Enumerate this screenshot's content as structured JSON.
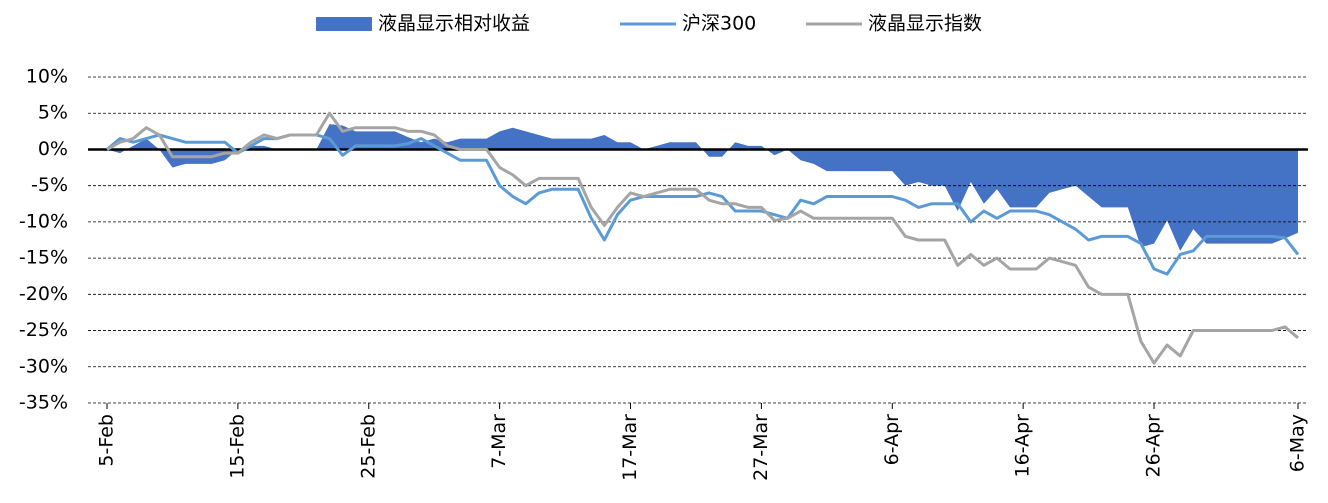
{
  "chart_data": {
    "type": "line",
    "x": [
      0,
      1,
      2,
      3,
      4,
      5,
      6,
      7,
      8,
      9,
      10,
      11,
      12,
      13,
      14,
      15,
      16,
      17,
      18,
      19,
      20,
      21,
      22,
      23,
      24,
      25,
      26,
      27,
      28,
      29,
      30,
      31,
      32,
      33,
      34,
      35,
      36,
      37,
      38,
      39,
      40,
      41,
      42,
      43,
      44,
      45,
      46,
      47,
      48,
      49,
      50,
      51,
      52,
      53,
      54,
      55,
      56,
      57,
      58,
      59,
      60,
      61,
      62,
      63,
      64,
      65,
      66,
      67,
      68,
      69,
      70,
      71,
      72,
      73,
      74,
      75,
      76,
      77,
      78,
      79,
      80,
      81,
      82,
      83,
      84,
      85,
      86,
      87,
      88,
      89,
      90,
      91
    ],
    "series": [
      {
        "name": "液晶显示相对收益",
        "kind": "area",
        "color": "#4472c4",
        "values": [
          0,
          -0.5,
          0.5,
          1.5,
          0,
          -2.5,
          -2,
          -2,
          -2,
          -1.5,
          0,
          0.5,
          0.5,
          0,
          0,
          0,
          0,
          3.5,
          3.3,
          2.5,
          2.5,
          2.5,
          2.5,
          1.7,
          1,
          1.5,
          1,
          1.5,
          1.5,
          1.5,
          2.5,
          3,
          2.5,
          2,
          1.5,
          1.5,
          1.5,
          1.5,
          2,
          1,
          1,
          0,
          0.5,
          1,
          1,
          1,
          -1,
          -1,
          1,
          0.5,
          0.5,
          -0.8,
          0,
          -1.5,
          -2,
          -3,
          -3,
          -3,
          -3,
          -3,
          -3,
          -5,
          -4.5,
          -5,
          -5,
          -8.5,
          -4.5,
          -7.5,
          -5.5,
          -8,
          -8,
          -8,
          -6,
          -5.5,
          -5,
          -6.5,
          -8,
          -8,
          -8,
          -13.5,
          -13,
          -9.8,
          -14,
          -11,
          -13,
          -13,
          -13,
          -13,
          -13,
          -13,
          -12.3,
          -11.5
        ]
      },
      {
        "name": "沪深300",
        "kind": "line",
        "color": "#5b9bd5",
        "values": [
          0,
          1.5,
          1,
          1.5,
          2,
          1.5,
          1,
          1,
          1,
          1,
          -0.5,
          0.5,
          1.5,
          1.5,
          2,
          2,
          2,
          1.5,
          -0.8,
          0.5,
          0.5,
          0.5,
          0.5,
          0.8,
          1.5,
          0.5,
          -0.5,
          -1.5,
          -1.5,
          -1.5,
          -5,
          -6.5,
          -7.5,
          -6,
          -5.5,
          -5.5,
          -5.5,
          -9.5,
          -12.5,
          -9,
          -7,
          -6.5,
          -6.5,
          -6.5,
          -6.5,
          -6.5,
          -6,
          -6.5,
          -8.5,
          -8.5,
          -8.5,
          -9,
          -9.5,
          -7,
          -7.5,
          -6.5,
          -6.5,
          -6.5,
          -6.5,
          -6.5,
          -6.5,
          -7,
          -8,
          -7.5,
          -7.5,
          -7.5,
          -10,
          -8.5,
          -9.5,
          -8.5,
          -8.5,
          -8.5,
          -9,
          -10,
          -11,
          -12.5,
          -12,
          -12,
          -12,
          -13,
          -16.5,
          -17.2,
          -14.5,
          -14,
          -12,
          -12,
          -12,
          -12,
          -12,
          -12,
          -12.2,
          -14.5
        ]
      },
      {
        "name": "液晶显示指数",
        "kind": "line",
        "color": "#a5a5a5",
        "values": [
          0,
          1,
          1.5,
          3,
          2,
          -1,
          -1,
          -1,
          -1,
          -0.5,
          -0.5,
          1,
          2,
          1.5,
          2,
          2,
          2,
          5,
          2.5,
          3,
          3,
          3,
          3,
          2.5,
          2.5,
          2,
          0.5,
          0,
          0,
          0,
          -2.5,
          -3.5,
          -5,
          -4,
          -4,
          -4,
          -4,
          -8,
          -10.5,
          -8,
          -6,
          -6.5,
          -6,
          -5.5,
          -5.5,
          -5.5,
          -7,
          -7.5,
          -7.5,
          -8,
          -8,
          -9.8,
          -9.5,
          -8.5,
          -9.5,
          -9.5,
          -9.5,
          -9.5,
          -9.5,
          -9.5,
          -9.5,
          -12,
          -12.5,
          -12.5,
          -12.5,
          -16,
          -14.5,
          -16,
          -15,
          -16.5,
          -16.5,
          -16.5,
          -15,
          -15.5,
          -16,
          -19,
          -20,
          -20,
          -20,
          -26.5,
          -29.5,
          -27,
          -28.5,
          -25,
          -25,
          -25,
          -25,
          -25,
          -25,
          -25,
          -24.5,
          -26
        ]
      }
    ],
    "xlim": [
      0,
      91
    ],
    "xticks": [
      {
        "value": 0,
        "label": "5-Feb"
      },
      {
        "value": 10,
        "label": "15-Feb"
      },
      {
        "value": 20,
        "label": "25-Feb"
      },
      {
        "value": 30,
        "label": "7-Mar"
      },
      {
        "value": 40,
        "label": "17-Mar"
      },
      {
        "value": 50,
        "label": "27-Mar"
      },
      {
        "value": 60,
        "label": "6-Apr"
      },
      {
        "value": 70,
        "label": "16-Apr"
      },
      {
        "value": 80,
        "label": "26-Apr"
      },
      {
        "value": 91,
        "label": "6-May"
      }
    ],
    "ylim": [
      -35,
      10
    ],
    "yticks": [
      {
        "value": 10,
        "label": "10%"
      },
      {
        "value": 5,
        "label": "5%"
      },
      {
        "value": 0,
        "label": "0%"
      },
      {
        "value": -5,
        "label": "-5%"
      },
      {
        "value": -10,
        "label": "-10%"
      },
      {
        "value": -15,
        "label": "-15%"
      },
      {
        "value": -20,
        "label": "-20%"
      },
      {
        "value": -25,
        "label": "-25%"
      },
      {
        "value": -30,
        "label": "-30%"
      },
      {
        "value": -35,
        "label": "-35%"
      }
    ],
    "grid": true,
    "legend": "top"
  }
}
